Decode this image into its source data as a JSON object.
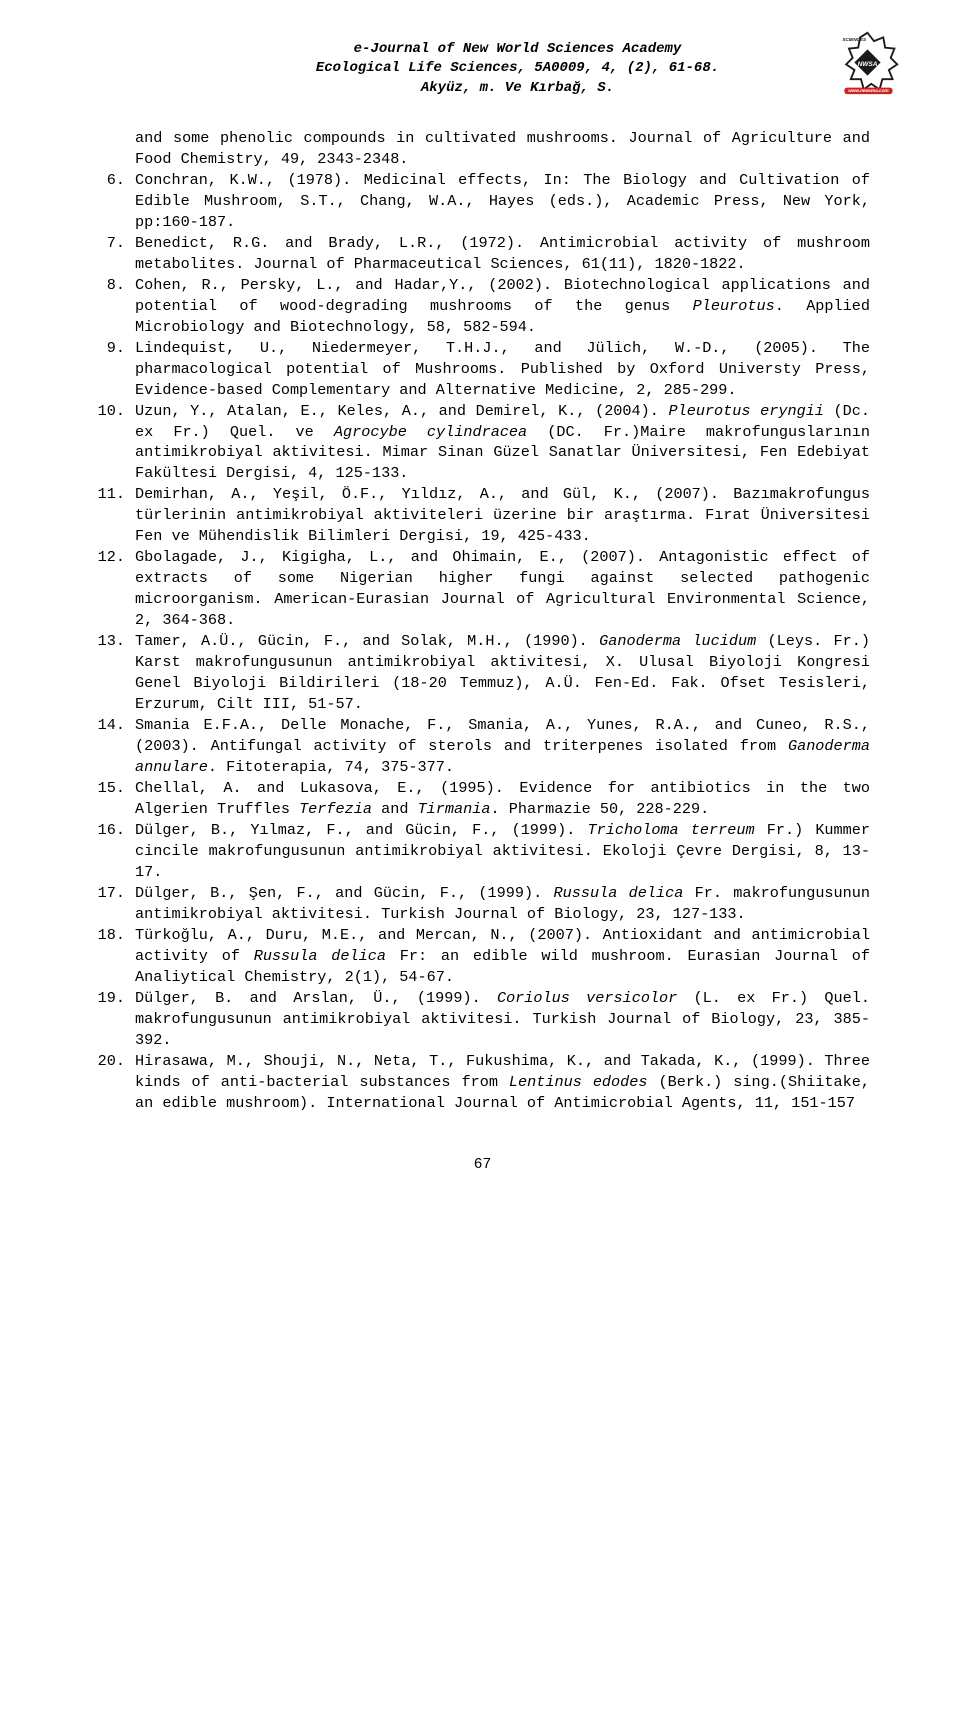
{
  "header": {
    "line1": "e-Journal of New World Sciences Academy",
    "line2": "Ecological Life Sciences, 5A0009, 4, (2), 61-68.",
    "line3": "Akyüz, m. Ve Kırbağ, S."
  },
  "intro_text": "and some phenolic compounds in cultivated mushrooms. Journal of Agriculture and Food Chemistry, 49, 2343-2348.",
  "references": [
    {
      "num": "6.",
      "text": "Conchran, K.W., (1978). Medicinal effects, In: The Biology and Cultivation of Edible Mushroom, S.T., Chang, W.A., Hayes (eds.), Academic Press, New York, pp:160-187."
    },
    {
      "num": "7.",
      "text": "Benedict, R.G. and Brady, L.R., (1972). Antimicrobial activity of mushroom metabolites. Journal of Pharmaceutical Sciences, 61(11), 1820-1822."
    },
    {
      "num": "8.",
      "text": "Cohen, R., Persky, L., and Hadar,Y., (2002). Biotechnological applications and potential of wood-degrading mushrooms of the genus <em>Pleurotus</em>. Applied Microbiology and Biotechnology, 58, 582-594."
    },
    {
      "num": "9.",
      "text": "Lindequist, U., Niedermeyer, T.H.J., and Jülich, W.-D., (2005). The pharmacological potential of Mushrooms. Published by Oxford Universty Press, Evidence-based Complementary and Alternative Medicine, 2, 285-299."
    },
    {
      "num": "10.",
      "text": "Uzun, Y., Atalan, E., Keles, A., and Demirel, K., (2004). <em>Pleurotus eryngii</em> (Dc. ex Fr.) Quel. ve <em>Agrocybe cylindracea</em> (DC. Fr.)Maire makrofunguslarının antimikrobiyal aktivitesi. Mimar Sinan Güzel Sanatlar Üniversitesi, Fen Edebiyat Fakültesi Dergisi, 4, 125-133."
    },
    {
      "num": "11.",
      "text": "Demirhan, A., Yeşil, Ö.F., Yıldız, A., and Gül, K., (2007). Bazımakrofungus türlerinin antimikrobiyal aktiviteleri üzerine bir araştırma. Fırat Üniversitesi Fen ve Mühendislik Bilimleri Dergisi, 19, 425-433."
    },
    {
      "num": "12.",
      "text": "Gbolagade, J., Kigigha, L., and Ohimain, E., (2007). Antagonistic effect of extracts of some Nigerian higher fungi against selected pathogenic microorganism. American-Eurasian Journal of Agricultural Environmental Science, 2, 364-368."
    },
    {
      "num": "13.",
      "text": "Tamer, A.Ü., Gücin, F., and Solak, M.H., (1990). <em>Ganoderma lucidum</em> (Leys. Fr.) Karst makrofungusunun antimikrobiyal aktivitesi, X. Ulusal Biyoloji Kongresi Genel Biyoloji Bildirileri (18-20 Temmuz), A.Ü. Fen-Ed. Fak. Ofset Tesisleri, Erzurum, Cilt III, 51-57."
    },
    {
      "num": "14.",
      "text": "Smania E.F.A., Delle Monache, F., Smania, A., Yunes, R.A., and Cuneo, R.S., (2003). Antifungal activity of sterols and triterpenes isolated from <em>Ganoderma annulare</em>. Fitoterapia, 74, 375-377."
    },
    {
      "num": "15.",
      "text": "Chellal, A. and Lukasova, E., (1995). Evidence for antibiotics in the two Algerien Truffles <em>Terfezia</em> and <em>Tirmania</em>. Pharmazie 50, 228-229."
    },
    {
      "num": "16.",
      "text": "Dülger, B., Yılmaz, F., and Gücin, F., (1999). <em>Tricholoma terreum</em> Fr.) Kummer cincile makrofungusunun antimikrobiyal aktivitesi. Ekoloji Çevre Dergisi, 8, 13-17."
    },
    {
      "num": "17.",
      "text": "Dülger, B., Şen, F., and Gücin, F., (1999). <em>Russula delica</em> Fr. makrofungusunun antimikrobiyal aktivitesi. Turkish Journal of Biology, 23, 127-133."
    },
    {
      "num": "18.",
      "text": "Türkoğlu, A., Duru, M.E., and Mercan, N., (2007). Antioxidant and antimicrobial activity of <em>Russula delica</em> Fr: an edible wild mushroom. Eurasian Journal of Analiytical Chemistry, 2(1), 54-67."
    },
    {
      "num": "19.",
      "text": "Dülger, B. and Arslan, Ü., (1999). <em>Coriolus versicolor</em> (L. ex Fr.) Quel. makrofungusunun antimikrobiyal aktivitesi. Turkish Journal of Biology, 23, 385-392."
    },
    {
      "num": "20.",
      "text": "Hirasawa, M., Shouji, N., Neta, T., Fukushima, K., and Takada, K., (1999). Three kinds of anti-bacterial substances from <em>Lentinus edodes</em> (Berk.) sing.(Shiitake, an edible mushroom). International Journal of Antimicrobial Agents, 11, 151-157"
    }
  ],
  "page_number": "67",
  "colors": {
    "background": "#ffffff",
    "text": "#000000",
    "logo_dark": "#1a1a1a",
    "logo_red": "#cc2222"
  }
}
